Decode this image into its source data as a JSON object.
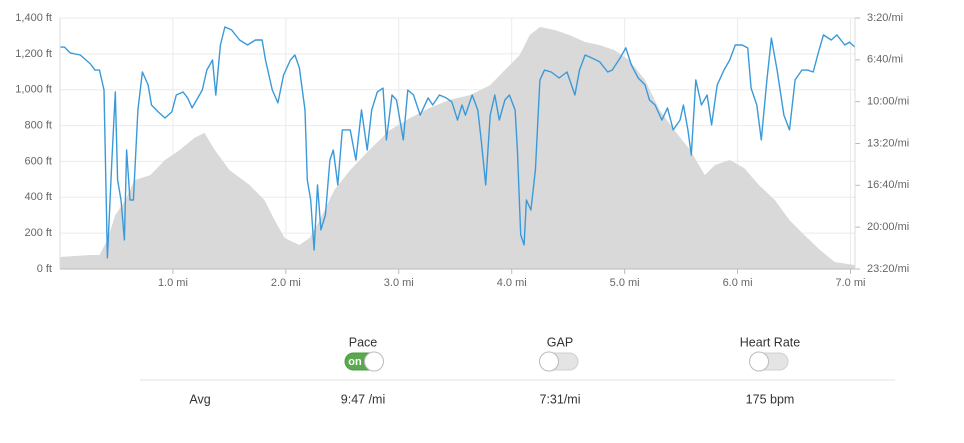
{
  "chart_data": {
    "type": "line",
    "xlim": [
      0,
      7.04
    ],
    "xticks": [
      {
        "value": 1,
        "label": "1.0 mi"
      },
      {
        "value": 2,
        "label": "2.0 mi"
      },
      {
        "value": 3,
        "label": "3.0 mi"
      },
      {
        "value": 4,
        "label": "4.0 mi"
      },
      {
        "value": 5,
        "label": "5.0 mi"
      },
      {
        "value": 6,
        "label": "6.0 mi"
      },
      {
        "value": 7,
        "label": "7.0 mi"
      }
    ],
    "ylim": [
      0,
      1400
    ],
    "yticks": [
      {
        "value": 0,
        "label": "0 ft"
      },
      {
        "value": 200,
        "label": "200 ft"
      },
      {
        "value": 400,
        "label": "400 ft"
      },
      {
        "value": 600,
        "label": "600 ft"
      },
      {
        "value": 800,
        "label": "800 ft"
      },
      {
        "value": 1000,
        "label": "1,000 ft"
      },
      {
        "value": 1200,
        "label": "1,200 ft"
      },
      {
        "value": 1400,
        "label": "1,400 ft"
      }
    ],
    "y2lim": [
      1400,
      200
    ],
    "y2ticks": [
      {
        "value": 200,
        "label": "3:20/mi"
      },
      {
        "value": 400,
        "label": "6:40/mi"
      },
      {
        "value": 600,
        "label": "10:00/mi"
      },
      {
        "value": 800,
        "label": "13:20/mi"
      },
      {
        "value": 1000,
        "label": "16:40/mi"
      },
      {
        "value": 1200,
        "label": "20:00/mi"
      },
      {
        "value": 1400,
        "label": "23:20/mi"
      }
    ],
    "grid": true,
    "series": [
      {
        "style": "area",
        "color": "#d9d9d9",
        "x": [
          0,
          0.27,
          0.35,
          0.42,
          0.49,
          0.58,
          0.66,
          0.8,
          0.93,
          1.06,
          1.19,
          1.28,
          1.37,
          1.5,
          1.68,
          1.81,
          1.9,
          1.99,
          2.12,
          2.21,
          2.3,
          2.43,
          2.57,
          2.74,
          2.92,
          3.1,
          3.27,
          3.45,
          3.63,
          3.81,
          3.94,
          4.07,
          4.16,
          4.25,
          4.38,
          4.51,
          4.65,
          4.78,
          4.91,
          5.04,
          5.18,
          5.31,
          5.44,
          5.58,
          5.71,
          5.8,
          5.93,
          6.06,
          6.19,
          6.33,
          6.46,
          6.59,
          6.73,
          6.86,
          7.04
        ],
        "values": [
          67,
          78,
          78,
          162,
          301,
          385,
          496,
          524,
          608,
          664,
          731,
          759,
          664,
          552,
          468,
          385,
          273,
          173,
          134,
          173,
          273,
          441,
          552,
          664,
          775,
          842,
          898,
          943,
          970,
          1026,
          1110,
          1193,
          1305,
          1350,
          1333,
          1305,
          1266,
          1249,
          1221,
          1166,
          1054,
          887,
          775,
          664,
          524,
          580,
          608,
          563,
          468,
          385,
          273,
          190,
          106,
          39,
          22
        ]
      },
      {
        "style": "line",
        "axis": "y2",
        "color": "#3a9ad9",
        "x": [
          0,
          0.04,
          0.09,
          0.18,
          0.27,
          0.31,
          0.35,
          0.39,
          0.42,
          0.46,
          0.49,
          0.51,
          0.54,
          0.57,
          0.59,
          0.62,
          0.65,
          0.69,
          0.73,
          0.78,
          0.81,
          0.87,
          0.93,
          0.99,
          1.03,
          1.09,
          1.13,
          1.17,
          1.21,
          1.26,
          1.3,
          1.35,
          1.38,
          1.42,
          1.46,
          1.52,
          1.59,
          1.66,
          1.73,
          1.79,
          1.82,
          1.88,
          1.93,
          1.98,
          2.04,
          2.08,
          2.12,
          2.17,
          2.19,
          2.22,
          2.25,
          2.28,
          2.31,
          2.35,
          2.39,
          2.42,
          2.46,
          2.5,
          2.57,
          2.62,
          2.67,
          2.72,
          2.76,
          2.81,
          2.86,
          2.89,
          2.94,
          2.98,
          3.04,
          3.08,
          3.13,
          3.19,
          3.26,
          3.3,
          3.36,
          3.42,
          3.47,
          3.52,
          3.56,
          3.59,
          3.65,
          3.7,
          3.73,
          3.77,
          3.81,
          3.85,
          3.89,
          3.94,
          3.98,
          4.03,
          4.05,
          4.08,
          4.11,
          4.13,
          4.17,
          4.21,
          4.25,
          4.29,
          4.35,
          4.42,
          4.49,
          4.56,
          4.6,
          4.65,
          4.71,
          4.78,
          4.85,
          4.89,
          4.96,
          5.01,
          5.06,
          5.12,
          5.18,
          5.22,
          5.27,
          5.33,
          5.38,
          5.43,
          5.49,
          5.52,
          5.56,
          5.59,
          5.63,
          5.68,
          5.73,
          5.77,
          5.82,
          5.88,
          5.93,
          5.98,
          6.04,
          6.09,
          6.12,
          6.17,
          6.21,
          6.26,
          6.3,
          6.35,
          6.41,
          6.46,
          6.51,
          6.57,
          6.62,
          6.67,
          6.71,
          6.76,
          6.83,
          6.88,
          6.95,
          6.99,
          7.04
        ],
        "values": [
          339,
          339,
          367,
          377,
          420,
          449,
          449,
          544,
          1347,
          879,
          554,
          974,
          1070,
          1261,
          831,
          1070,
          1070,
          640,
          458,
          520,
          616,
          649,
          678,
          649,
          568,
          554,
          582,
          630,
          592,
          544,
          449,
          401,
          568,
          329,
          243,
          257,
          305,
          329,
          305,
          305,
          401,
          544,
          606,
          472,
          401,
          377,
          439,
          640,
          974,
          1070,
          1309,
          998,
          1213,
          1142,
          879,
          831,
          998,
          735,
          735,
          879,
          640,
          831,
          640,
          554,
          535,
          783,
          568,
          592,
          783,
          544,
          568,
          664,
          582,
          616,
          568,
          582,
          602,
          688,
          616,
          664,
          568,
          640,
          783,
          998,
          664,
          568,
          688,
          592,
          568,
          640,
          831,
          1237,
          1285,
          1070,
          1118,
          927,
          496,
          449,
          458,
          487,
          458,
          568,
          449,
          377,
          391,
          410,
          458,
          449,
          391,
          343,
          425,
          487,
          520,
          592,
          616,
          688,
          630,
          735,
          688,
          616,
          735,
          855,
          496,
          616,
          568,
          711,
          520,
          449,
          401,
          329,
          329,
          343,
          535,
          616,
          783,
          496,
          296,
          449,
          664,
          735,
          496,
          449,
          449,
          458,
          377,
          281,
          305,
          281,
          329,
          315,
          339
        ]
      }
    ]
  },
  "controls": [
    {
      "label": "Pace",
      "checked": true,
      "state_text": "on"
    },
    {
      "label": "GAP",
      "checked": false
    },
    {
      "label": "Heart Rate",
      "checked": false
    }
  ],
  "summary": {
    "label": "Avg",
    "values": [
      "9:47 /mi",
      "7:31/mi",
      "175 bpm"
    ]
  }
}
